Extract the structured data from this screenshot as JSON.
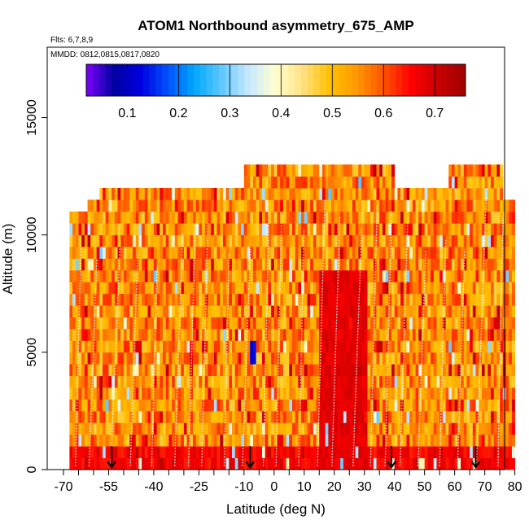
{
  "chart_data": {
    "type": "heatmap",
    "title": "ATOM1 Northbound asymmetry_675_AMP",
    "flights_note": "Flts: 6,7,8,9",
    "dates_note": "MMDD: 0812,0815,0817,0820",
    "xlabel": "Latitude (deg N)",
    "ylabel": "Altitude (m)",
    "xlim": [
      -70,
      82
    ],
    "ylim": [
      0,
      18000
    ],
    "x_ticks": [
      -70,
      -55,
      -40,
      -25,
      -10,
      0,
      10,
      20,
      30,
      40,
      50,
      60,
      70,
      80
    ],
    "x_ticks_unlabeled": [
      -65,
      -60,
      -50,
      -45,
      -35,
      -30,
      -20,
      -15,
      -5,
      5,
      15,
      25,
      35,
      45,
      55,
      65,
      75
    ],
    "y_ticks": [
      0,
      5000,
      10000,
      15000
    ],
    "colorbar": {
      "range": [
        0.02,
        0.76
      ],
      "ticks": [
        0.1,
        0.2,
        0.3,
        0.4,
        0.5,
        0.6,
        0.7
      ],
      "colors": [
        "#8000ff",
        "#0000a0",
        "#0000e0",
        "#0050ff",
        "#00a8ff",
        "#60c8ff",
        "#c8e8ff",
        "#ffffd0",
        "#ffe080",
        "#ffc000",
        "#ff9800",
        "#ff5000",
        "#ff0000",
        "#c80000",
        "#a00000"
      ]
    },
    "profile_arrows_lat": [
      -54,
      -8,
      39,
      67
    ],
    "column_tops_m": [
      {
        "lat_min": -68,
        "lat_max": -62,
        "top": 11000
      },
      {
        "lat_min": -62,
        "lat_max": -58,
        "top": 11500
      },
      {
        "lat_min": -58,
        "lat_max": -10,
        "top": 12000
      },
      {
        "lat_min": -10,
        "lat_max": 38,
        "top": 12900
      },
      {
        "lat_min": 38,
        "lat_max": 40,
        "top": 13000
      },
      {
        "lat_min": 40,
        "lat_max": 58,
        "top": 12000
      },
      {
        "lat_min": 58,
        "lat_max": 76,
        "top": 12600
      },
      {
        "lat_min": 76,
        "lat_max": 80,
        "top": 11200
      }
    ],
    "features": [
      {
        "desc": "high asymmetry core",
        "lat_range": [
          15,
          30
        ],
        "alt_range": [
          0,
          8000
        ],
        "value_approx": 0.68
      },
      {
        "desc": "low asymmetry patch",
        "lat_range": [
          -8,
          -7
        ],
        "alt_range": [
          4500,
          5300
        ],
        "value_approx": 0.12
      }
    ],
    "background_value_approx": 0.55,
    "boundary_layer_value_approx": 0.66
  }
}
